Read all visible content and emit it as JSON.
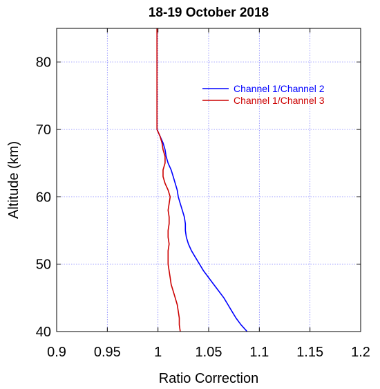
{
  "chart_data": {
    "type": "line",
    "title": "18-19 October 2018",
    "xlabel": "Ratio Correction",
    "ylabel": "Altitude (km)",
    "xlim": [
      0.9,
      1.2
    ],
    "ylim": [
      40,
      85
    ],
    "xticks": [
      0.9,
      0.95,
      1,
      1.05,
      1.1,
      1.15,
      1.2
    ],
    "xtick_labels": [
      "0.9",
      "0.95",
      "1",
      "1.05",
      "1.1",
      "1.15",
      "1.2"
    ],
    "yticks": [
      40,
      50,
      60,
      70,
      80
    ],
    "ytick_labels": [
      "40",
      "50",
      "60",
      "70",
      "80"
    ],
    "grid": true,
    "legend_position": "top-right",
    "series": [
      {
        "name": "Channel 1/Channel 2",
        "color": "#0000ff",
        "x": [
          1.088,
          1.082,
          1.077,
          1.073,
          1.069,
          1.065,
          1.06,
          1.055,
          1.05,
          1.045,
          1.041,
          1.037,
          1.033,
          1.03,
          1.028,
          1.027,
          1.027,
          1.026,
          1.024,
          1.022,
          1.02,
          1.019,
          1.017,
          1.015,
          1.013,
          1.01,
          1.008,
          1.007,
          1.005,
          1.002,
          0.999
        ],
        "y": [
          40,
          41,
          42,
          43,
          44,
          45,
          46,
          47,
          48,
          49,
          50,
          51,
          52,
          53,
          54,
          55,
          56,
          57,
          58,
          59,
          60,
          61,
          62,
          63,
          64,
          65,
          66,
          67,
          68,
          69,
          70
        ]
      },
      {
        "name": "Channel 1/Channel 3",
        "color": "#cc0000",
        "x": [
          1.022,
          1.021,
          1.021,
          1.02,
          1.019,
          1.017,
          1.015,
          1.013,
          1.012,
          1.011,
          1.01,
          1.01,
          1.01,
          1.011,
          1.01,
          1.01,
          1.011,
          1.011,
          1.01,
          1.011,
          1.012,
          1.01,
          1.007,
          1.005,
          1.005,
          1.007,
          1.007,
          1.005,
          1.004,
          1.002,
          0.999
        ],
        "y": [
          40,
          41,
          42,
          43,
          44,
          45,
          46,
          47,
          48,
          49,
          50,
          51,
          52,
          53,
          54,
          55,
          56,
          57,
          58,
          59,
          60,
          61,
          62,
          63,
          64,
          65,
          66,
          67,
          68,
          69,
          70
        ]
      },
      {
        "name": "",
        "color": "#cc0000",
        "x": [
          0.999,
          0.999
        ],
        "y": [
          70,
          85
        ]
      }
    ]
  }
}
